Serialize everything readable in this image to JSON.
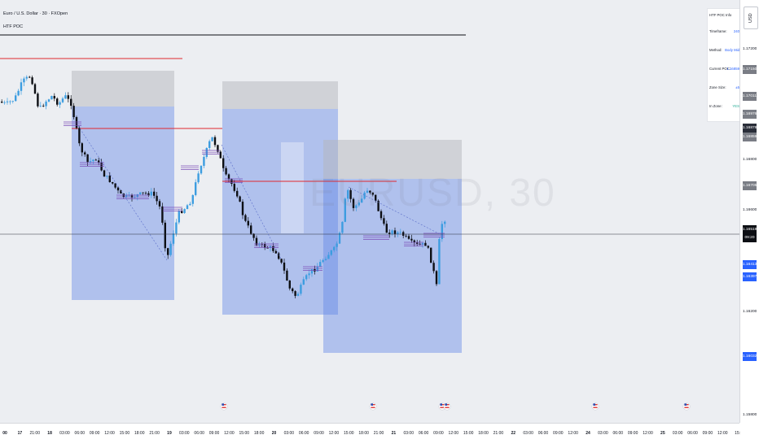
{
  "header": {
    "title": "Euro / U.S. Dollar · 30 · FXOpen",
    "indicator": "HTF POC"
  },
  "watermark": "EURUSD, 30",
  "price_axis": {
    "currency": "USD",
    "labels": [
      {
        "text": "1.17200",
        "style": "plain"
      },
      {
        "text": "1.17150",
        "style": "gray"
      },
      {
        "text": "1.17011",
        "style": "gray"
      },
      {
        "text": "1.16976",
        "style": "gray"
      },
      {
        "text": "1.16878",
        "style": "dark"
      },
      {
        "text": "1.16859",
        "style": "gray"
      },
      {
        "text": "1.16800",
        "style": "plain"
      },
      {
        "text": "1.16705",
        "style": "gray"
      },
      {
        "text": "1.16600",
        "style": "plain"
      },
      {
        "text": "1.16519",
        "style": "black"
      },
      {
        "text": "09:20",
        "style": "black"
      },
      {
        "text": "1.16413",
        "style": "blue"
      },
      {
        "text": "1.16397",
        "style": "blue"
      },
      {
        "text": "1.16200",
        "style": "plain"
      },
      {
        "text": "1.16032",
        "style": "blue"
      },
      {
        "text": "1.15800",
        "style": "plain"
      }
    ]
  },
  "time_axis": {
    "labels": [
      "00",
      "17",
      "21:00",
      "18",
      "03:00",
      "06:00",
      "09:00",
      "12:00",
      "15:00",
      "18:00",
      "21:00",
      "19",
      "03:00",
      "06:00",
      "09:00",
      "12:00",
      "15:00",
      "18:00",
      "20",
      "03:00",
      "06:00",
      "09:00",
      "12:00",
      "15:00",
      "18:00",
      "21:00",
      "21",
      "03:00",
      "06:00",
      "09:00",
      "12:00",
      "15:00",
      "18:00",
      "21:00",
      "22",
      "03:00",
      "06:00",
      "09:00",
      "12:00",
      "24",
      "03:00",
      "06:00",
      "09:00",
      "12:00",
      "25",
      "03:00",
      "06:00",
      "09:00",
      "12:00",
      "15:"
    ]
  },
  "info_table": {
    "title": "HTF POC Info",
    "rows": [
      {
        "key": "Timeframe:",
        "value": "240",
        "color": "#2962ff"
      },
      {
        "key": "Method:",
        "value": "Body Mid",
        "color": "#2962ff"
      },
      {
        "key": "Current POC:",
        "value": "1.16859",
        "color": "#2962ff"
      },
      {
        "key": "Zone Size:",
        "value": "±5",
        "color": "#2962ff"
      },
      {
        "key": "In Zone:",
        "value": "YES",
        "color": "#22ab94"
      }
    ]
  },
  "colors": {
    "up_candle": "#3d9de0",
    "down_candle": "#0d0f14",
    "poc_red": "#e0282e",
    "zone_blue": "rgba(92,132,232,0.42)",
    "zone_gray": "rgba(180,182,188,0.5)",
    "tag_blue": "#2962ff"
  },
  "event_markers": [
    "flag-icon-us",
    "flag-icon-us",
    "flag-icon-us",
    "flag-icon-us",
    "flag-icon-us",
    "flag-icon-us"
  ]
}
